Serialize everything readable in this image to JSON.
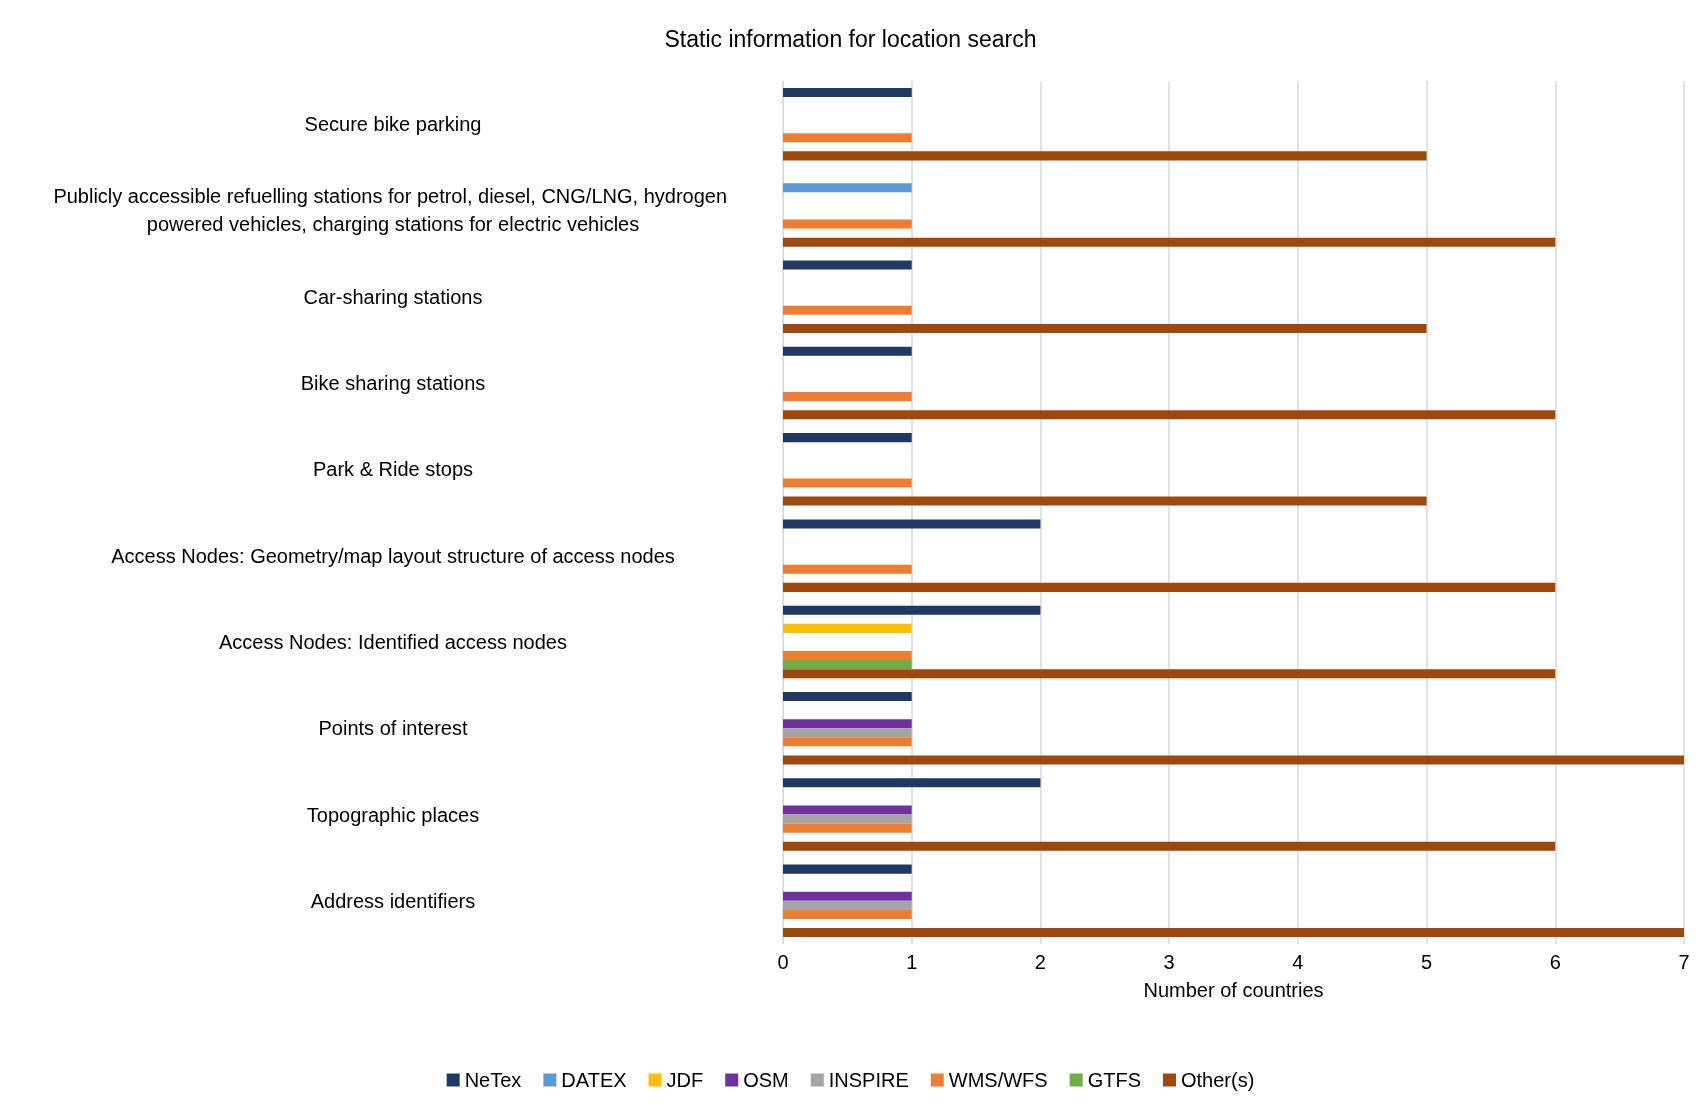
{
  "chart_data": {
    "type": "bar",
    "orientation": "horizontal",
    "title": "Static information for location search",
    "xlabel": "Number of countries",
    "categories": [
      "Secure bike parking",
      "Publicly accessible refuelling stations for petrol, diesel, CNG/LNG, hydrogen powered vehicles, charging stations for electric vehicles",
      "Car-sharing stations",
      "Bike sharing stations",
      "Park & Ride stops",
      "Access Nodes: Geometry/map layout structure of access nodes",
      "Access Nodes: Identified access nodes",
      "Points of interest",
      "Topographic places",
      "Address identifiers"
    ],
    "series": [
      {
        "name": "NeTex",
        "color": "#203864",
        "values": [
          1,
          null,
          1,
          1,
          1,
          2,
          2,
          1,
          2,
          1
        ]
      },
      {
        "name": "DATEX",
        "color": "#5b9bd5",
        "values": [
          null,
          1,
          null,
          null,
          null,
          null,
          null,
          null,
          null,
          null
        ]
      },
      {
        "name": "JDF",
        "color": "#ffc000",
        "values": [
          null,
          null,
          null,
          null,
          null,
          null,
          1,
          null,
          null,
          null
        ]
      },
      {
        "name": "OSM",
        "color": "#7030a0",
        "values": [
          null,
          null,
          null,
          null,
          null,
          null,
          null,
          1,
          1,
          1
        ]
      },
      {
        "name": "INSPIRE",
        "color": "#a5a5a5",
        "values": [
          null,
          null,
          null,
          null,
          null,
          null,
          null,
          1,
          1,
          1
        ]
      },
      {
        "name": "WMS/WFS",
        "color": "#ed7d31",
        "values": [
          1,
          1,
          1,
          1,
          1,
          1,
          1,
          1,
          1,
          1
        ]
      },
      {
        "name": "GTFS",
        "color": "#70ad47",
        "values": [
          null,
          null,
          null,
          null,
          null,
          null,
          1,
          null,
          null,
          null
        ]
      },
      {
        "name": "Other(s)",
        "color": "#9e480e",
        "values": [
          5,
          6,
          5,
          6,
          5,
          6,
          6,
          7,
          6,
          7
        ]
      }
    ],
    "xlim": [
      0,
      7
    ],
    "xticks": [
      0,
      1,
      2,
      3,
      4,
      5,
      6,
      7
    ],
    "grid": "x",
    "legend": "bottom"
  }
}
